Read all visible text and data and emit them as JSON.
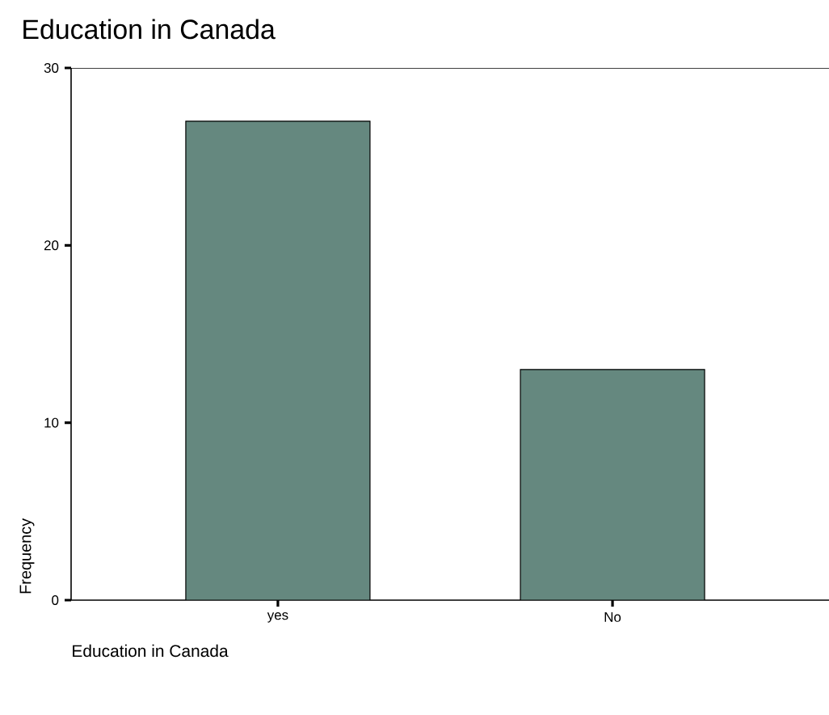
{
  "chart_data": {
    "type": "bar",
    "title": "Education in Canada",
    "xlabel": "Education in Canada",
    "ylabel": "Frequency",
    "categories": [
      "yes",
      "No"
    ],
    "values": [
      27,
      13
    ],
    "color": "#65887f",
    "ylim": [
      0,
      30
    ],
    "yticks": [
      0,
      10,
      20,
      30
    ],
    "grid": false
  }
}
